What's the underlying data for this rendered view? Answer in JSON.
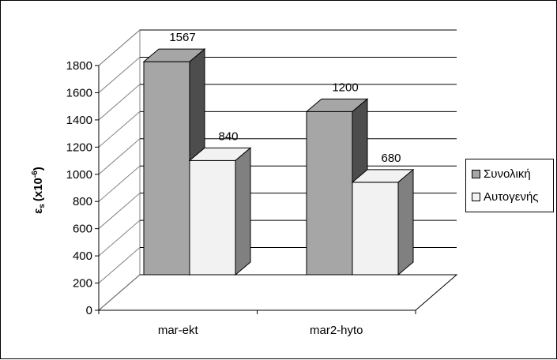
{
  "chart_data": {
    "type": "bar",
    "title": "",
    "xlabel": "",
    "ylabel": "εs (x10-6)",
    "ylabel_parts": {
      "main": "ε",
      "sub": "s",
      "pre": "(x10",
      "sup": "-6",
      "post": ")"
    },
    "categories": [
      "mar-ekt",
      "mar2-hyto"
    ],
    "series": [
      {
        "name": "Συνολική",
        "values": [
          1567,
          1200
        ],
        "color": "#a6a6a6"
      },
      {
        "name": "Αυτογενής",
        "values": [
          840,
          680
        ],
        "color": "#f2f2f2"
      }
    ],
    "data_labels": [
      "1567",
      "840",
      "1200",
      "680"
    ],
    "ylim": [
      0,
      1800
    ],
    "yticks": [
      "0",
      "200",
      "400",
      "600",
      "800",
      "1000",
      "1200",
      "1400",
      "1600",
      "1800"
    ],
    "grid": true,
    "three_d": true,
    "legend_position": "right"
  }
}
